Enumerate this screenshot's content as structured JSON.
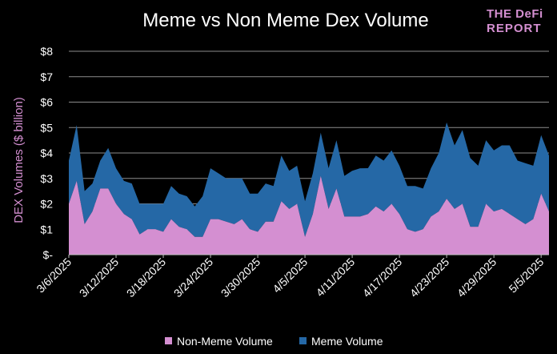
{
  "chart_data": {
    "type": "area",
    "stacked": true,
    "title": "Meme vs Non Meme Dex Volume",
    "ylabel": "DEX Volumes ($ billion)",
    "xlabel": "",
    "ylim": [
      0,
      8
    ],
    "y_ticks": [
      0,
      1,
      2,
      3,
      4,
      5,
      6,
      7,
      8
    ],
    "y_tick_labels": [
      "$-",
      "$1",
      "$2",
      "$3",
      "$4",
      "$5",
      "$6",
      "$7",
      "$8"
    ],
    "x_tick_labels": [
      "3/6/2025",
      "3/12/2025",
      "3/18/2025",
      "3/24/2025",
      "3/30/2025",
      "4/5/2025",
      "4/11/2025",
      "4/17/2025",
      "4/23/2025",
      "4/29/2025",
      "5/5/2025"
    ],
    "x_start": "3/6/2025",
    "x_end": "5/6/2025",
    "grid": true,
    "legend_position": "bottom",
    "series": [
      {
        "name": "Non-Meme Volume",
        "color": "#d48fd1",
        "values": [
          2.0,
          2.9,
          1.2,
          1.7,
          2.6,
          2.6,
          2.0,
          1.6,
          1.4,
          0.8,
          1.0,
          1.0,
          0.9,
          1.4,
          1.1,
          1.0,
          0.7,
          0.7,
          1.4,
          1.4,
          1.3,
          1.2,
          1.4,
          1.0,
          0.9,
          1.3,
          1.3,
          2.1,
          1.8,
          2.0,
          0.7,
          1.6,
          3.1,
          1.8,
          2.6,
          1.5,
          1.5,
          1.5,
          1.6,
          1.9,
          1.7,
          2.0,
          1.6,
          1.0,
          0.9,
          1.0,
          1.5,
          1.7,
          2.2,
          1.8,
          2.0,
          1.1,
          1.1,
          2.0,
          1.7,
          1.8,
          1.6,
          1.4,
          1.2,
          1.4,
          2.4,
          1.7
        ]
      },
      {
        "name": "Meme Volume",
        "color": "#2568a6",
        "values": [
          1.7,
          2.2,
          1.3,
          1.1,
          1.1,
          1.6,
          1.4,
          1.3,
          1.4,
          1.2,
          1.0,
          1.0,
          1.1,
          1.3,
          1.3,
          1.3,
          1.2,
          1.6,
          2.0,
          1.8,
          1.7,
          1.8,
          1.6,
          1.4,
          1.5,
          1.5,
          1.4,
          1.8,
          1.5,
          1.5,
          1.4,
          1.6,
          1.7,
          1.6,
          1.9,
          1.6,
          1.8,
          1.9,
          1.8,
          2.0,
          2.0,
          2.1,
          1.9,
          1.7,
          1.8,
          1.6,
          1.9,
          2.3,
          3.0,
          2.5,
          2.9,
          2.7,
          2.4,
          2.5,
          2.4,
          2.5,
          2.7,
          2.3,
          2.4,
          2.1,
          2.3,
          2.2
        ]
      }
    ]
  },
  "logo": {
    "line1": "THE DeFi",
    "line2": "REPORT"
  }
}
